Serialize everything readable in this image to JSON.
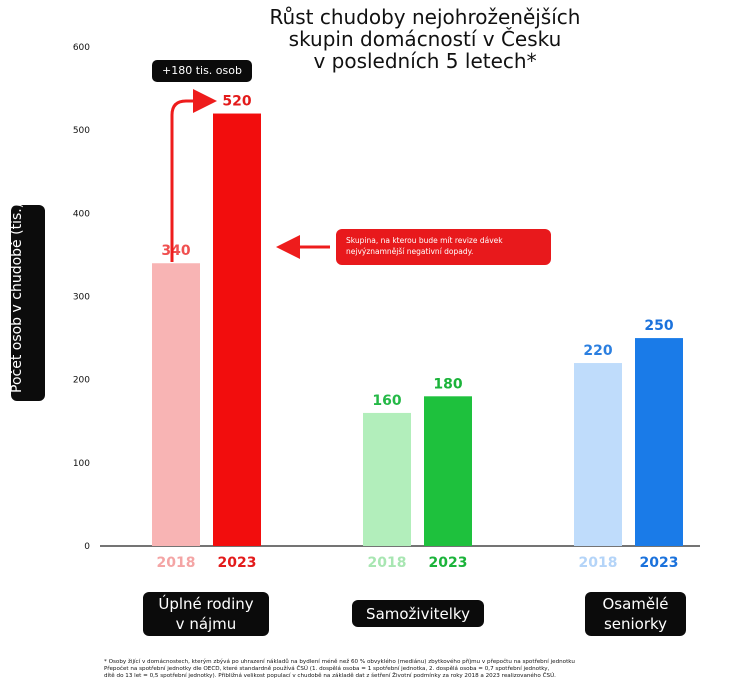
{
  "title": {
    "line1": "Růst chudoby nejohroženějších",
    "line2": "skupin domácností v Česku",
    "line3": "v posledních 5 letech*"
  },
  "growth_badge": "+180 tis. osob",
  "callout": "Skupina, na kterou bude mít revize dávek nejvýznamnější negativní dopady.",
  "group_labels": {
    "g1_line1": "Úplné rodiny",
    "g1_line2": "v nájmu",
    "g2": "Samoživitelky",
    "g3_line1": "Osamělé",
    "g3_line2": "seniorky"
  },
  "footnote": {
    "line1": "* Osoby žijící v domácnostech, kterým zbývá po uhrazení nákladů na bydlení méně než 60 % obvyklého (mediánu) zbytkového příjmu v přepočtu na spotřební jednotku",
    "line2": "Přepočet na spotřební jednotky dle OECD, které standardně používá ČSÚ (1. dospělá osoba = 1 spotřební jednotka, 2. dospělá osoba = 0,7 spotřební jednotky,",
    "line3": "dítě do 13 let = 0,5 spotřební jednotky). Přibližná velikost populací v chudobě na základě dat z šetření Životní podmínky za roky 2018 a 2023 realizovaného ČSÚ."
  },
  "chart_data": {
    "type": "bar",
    "title": "Růst chudoby nejohroženějších skupin domácností v Česku v posledních 5 letech*",
    "ylabel": "Počet osob v chudobě (tis.)",
    "ylim": [
      0,
      600
    ],
    "yticks": [
      0,
      100,
      200,
      300,
      400,
      500,
      600
    ],
    "grid": false,
    "groups": [
      {
        "name": "Úplné rodiny v nájmu",
        "bars": [
          {
            "year": "2018",
            "value": 340,
            "label": "340",
            "color": "#f8b4b4",
            "year_color": "#f4a5a5",
            "label_color": "#f05050"
          },
          {
            "year": "2023",
            "value": 520,
            "label": "520",
            "color": "#f20d0d",
            "year_color": "#e31b1b",
            "label_color": "#e31b1b"
          }
        ]
      },
      {
        "name": "Samoživitelky",
        "bars": [
          {
            "year": "2018",
            "value": 160,
            "label": "160",
            "color": "#b2eebb",
            "year_color": "#a8e6b2",
            "label_color": "#25b947"
          },
          {
            "year": "2023",
            "value": 180,
            "label": "180",
            "color": "#1ec13d",
            "year_color": "#1bb33a",
            "label_color": "#1bb33a"
          }
        ]
      },
      {
        "name": "Osamělé seniorky",
        "bars": [
          {
            "year": "2018",
            "value": 220,
            "label": "220",
            "color": "#bfdcfb",
            "year_color": "#b4d4f8",
            "label_color": "#2b7fe0"
          },
          {
            "year": "2023",
            "value": 250,
            "label": "250",
            "color": "#1a7be8",
            "year_color": "#1b72dc",
            "label_color": "#1b72dc"
          }
        ]
      }
    ]
  }
}
